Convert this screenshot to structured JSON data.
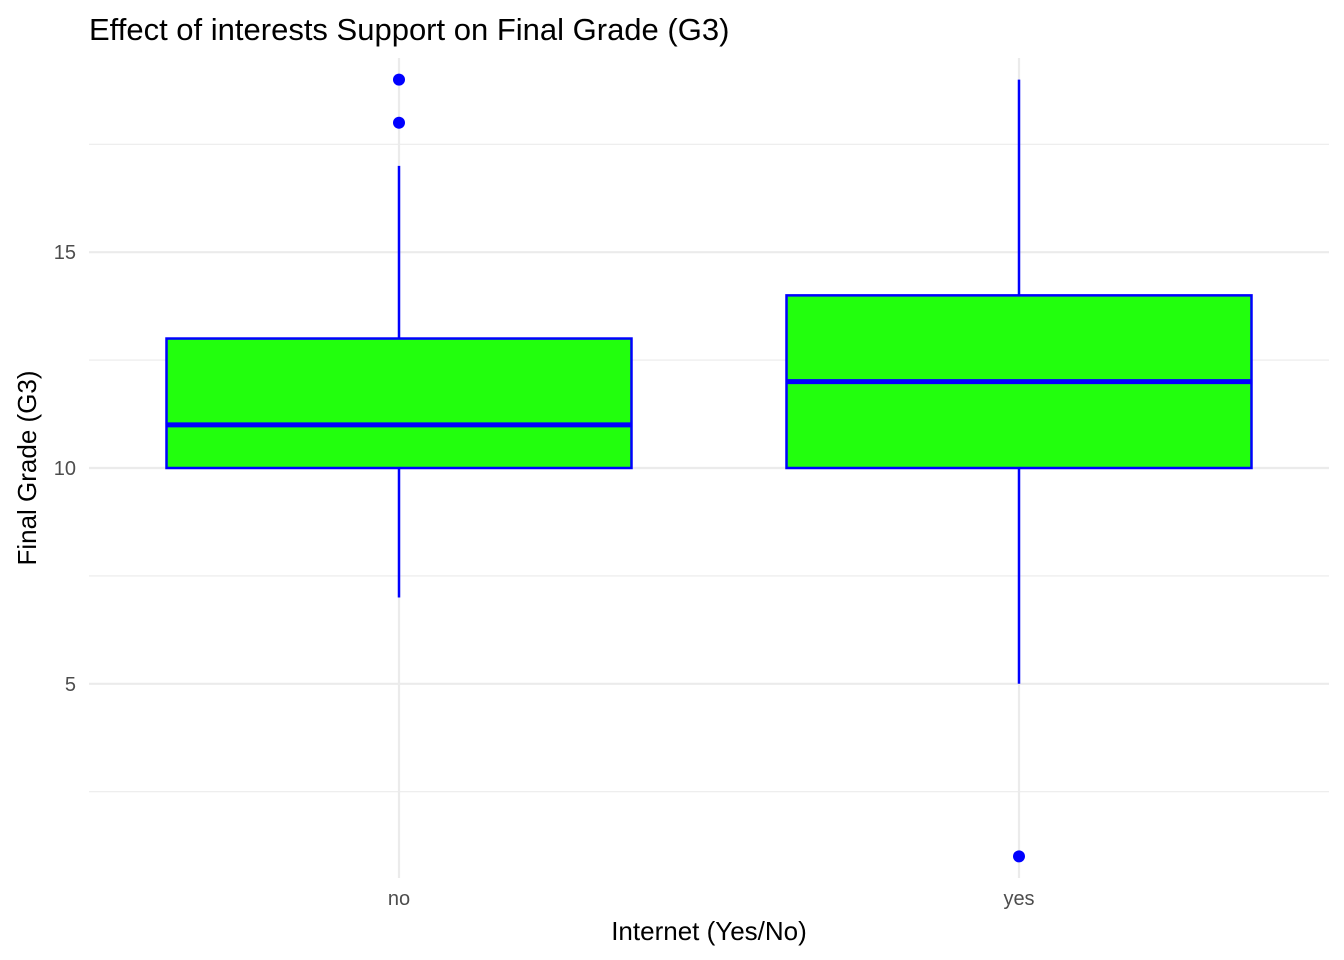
{
  "chart_data": {
    "type": "box",
    "title": "Effect of interests Support on Final Grade (G3)",
    "xlabel": "Internet (Yes/No)",
    "ylabel": "Final Grade (G3)",
    "categories": [
      "no",
      "yes"
    ],
    "ylim": [
      0.5,
      19.5
    ],
    "y_ticks": [
      5,
      10,
      15
    ],
    "y_minor_ticks": [
      2.5,
      7.5,
      12.5,
      17.5
    ],
    "grid": true,
    "legend": "none",
    "boxes": [
      {
        "category": "no",
        "whisker_low": 7,
        "q1": 10,
        "median": 11,
        "q3": 13,
        "whisker_high": 17,
        "outliers": [
          18,
          19
        ]
      },
      {
        "category": "yes",
        "whisker_low": 5,
        "q1": 10,
        "median": 12,
        "q3": 14,
        "whisker_high": 19,
        "outliers": [
          1
        ]
      }
    ],
    "colors": {
      "box_fill": "#22ff0d",
      "box_line": "#0000ff",
      "outlier": "#0000ff",
      "grid": "#ebebeb"
    }
  }
}
